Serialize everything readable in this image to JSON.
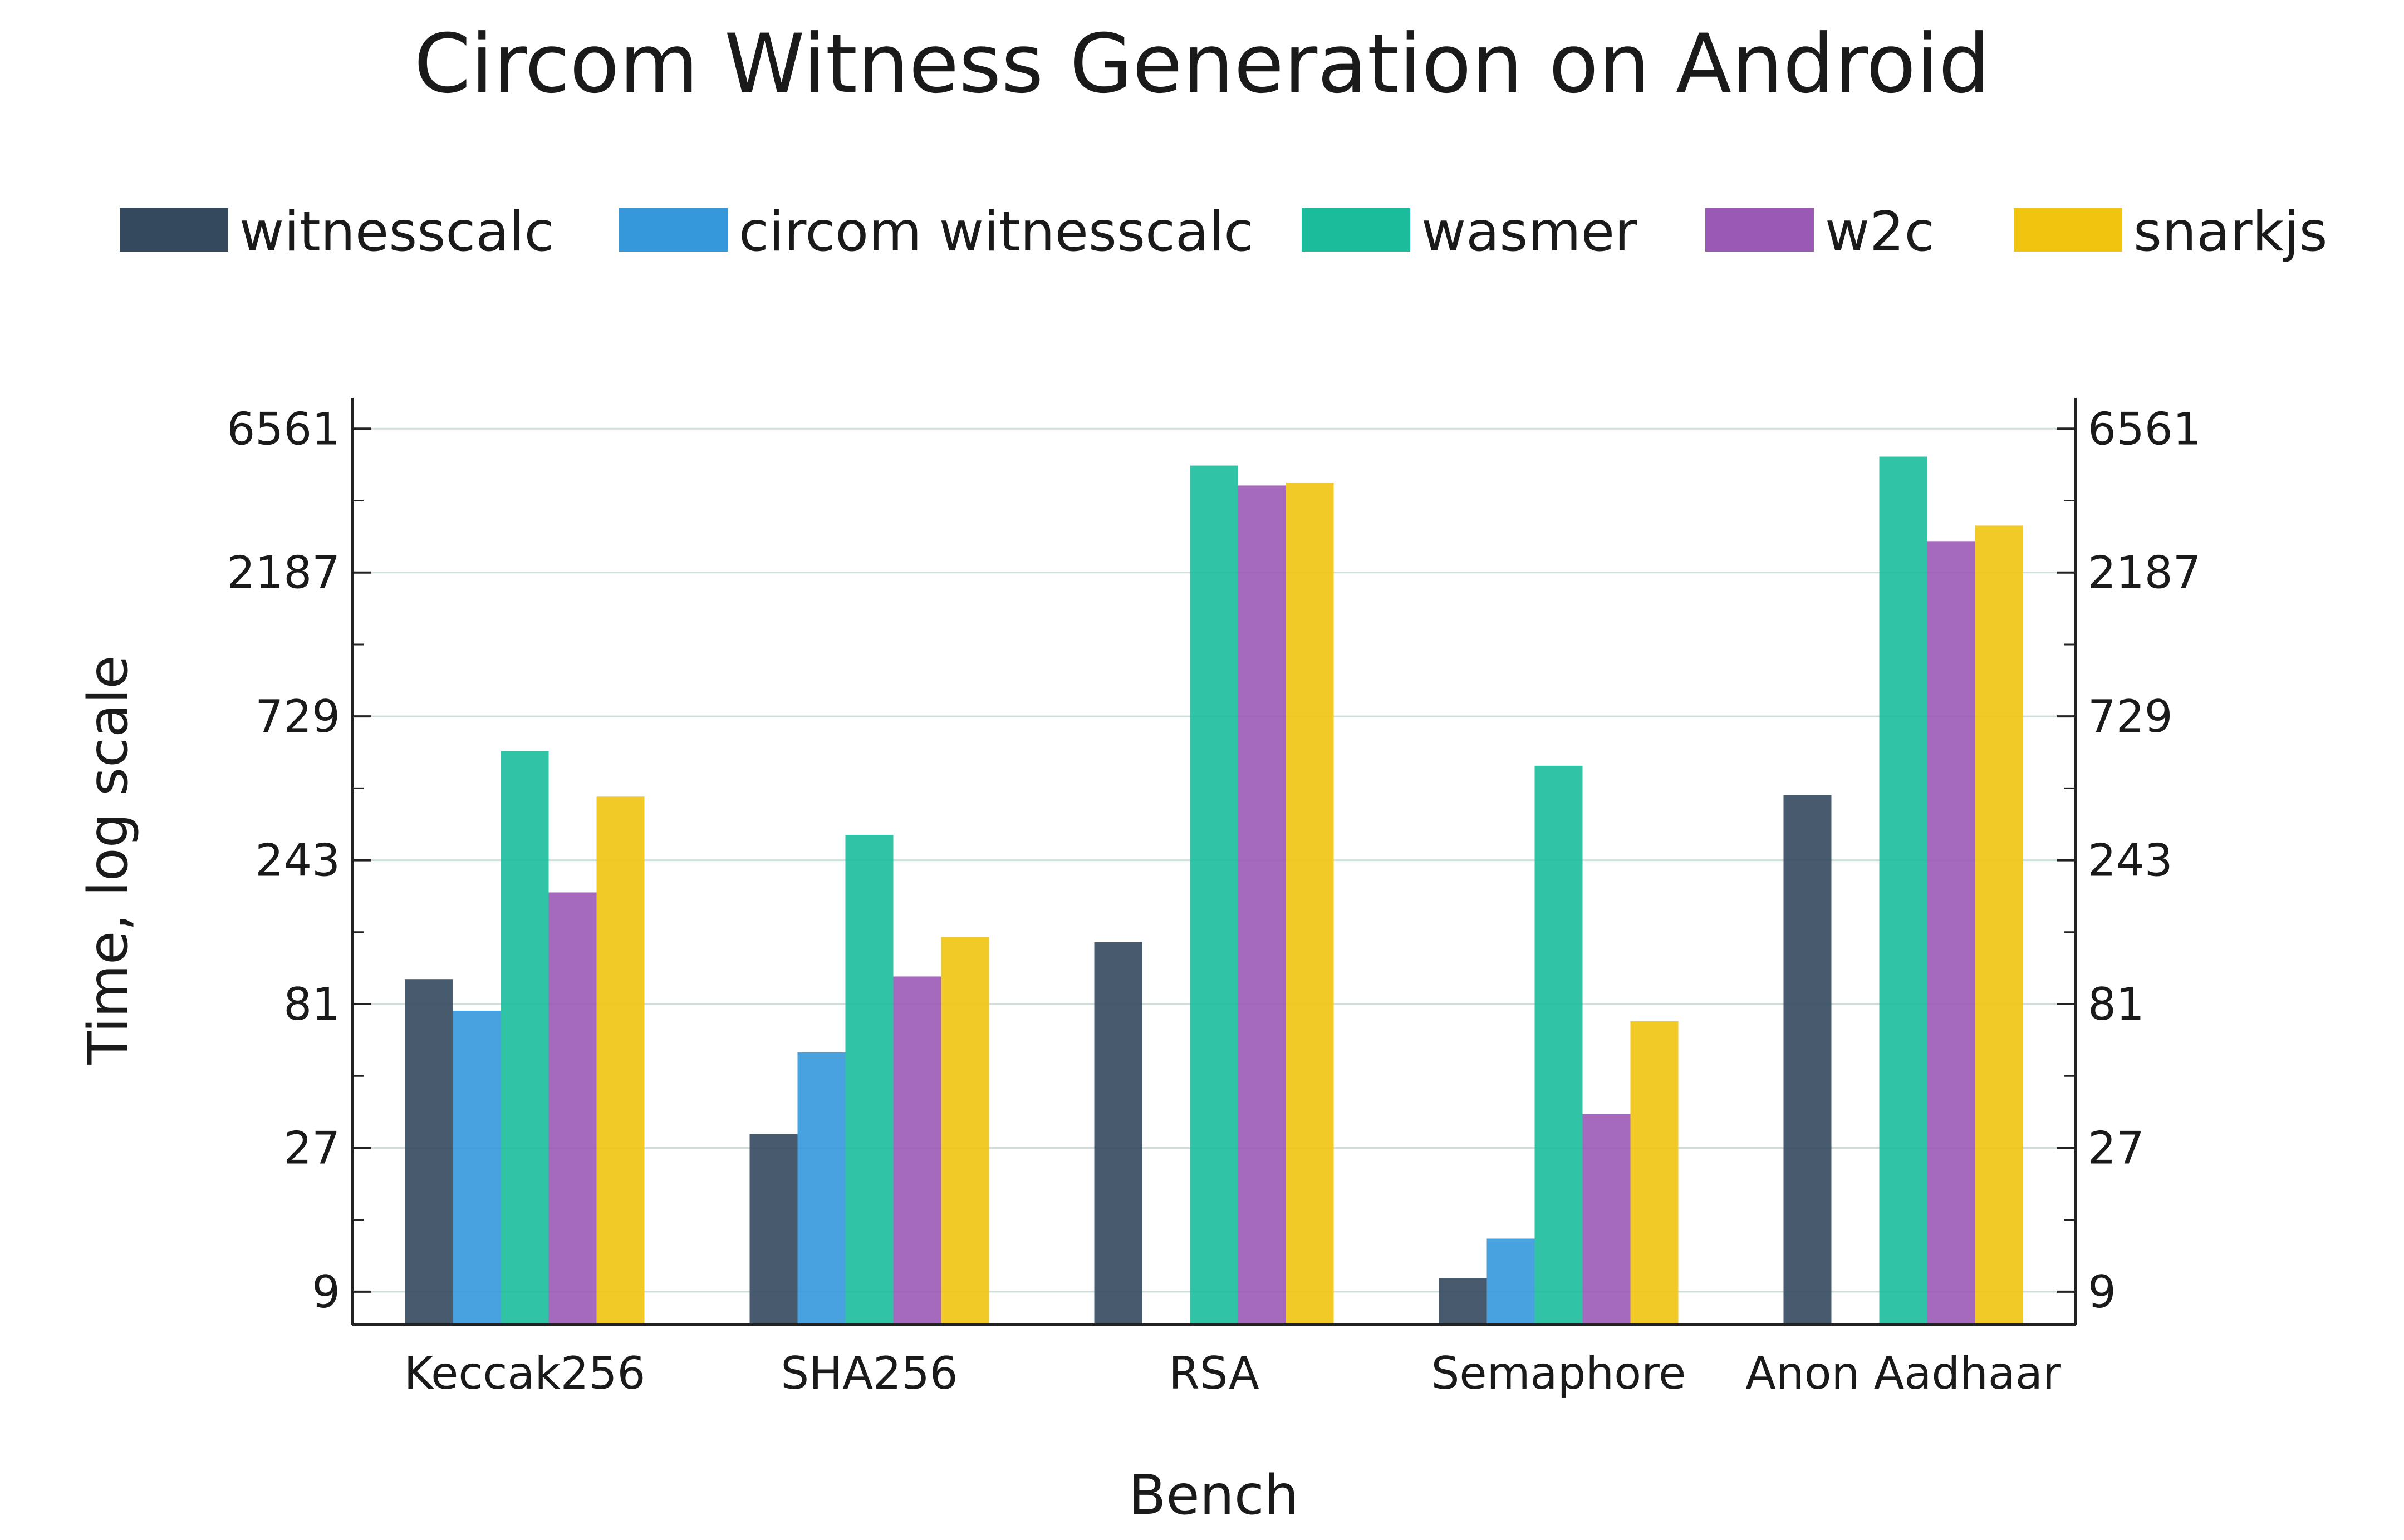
{
  "chart_data": {
    "type": "bar",
    "title": "Circom Witness Generation on Android",
    "xlabel": "Bench",
    "ylabel": "Time, log scale",
    "y_scale": "log3",
    "ylim": [
      7,
      8300
    ],
    "y_ticks": [
      9,
      27,
      81,
      243,
      729,
      2187,
      6561
    ],
    "y_tick_labels": [
      "9",
      "27",
      "81",
      "243",
      "729",
      "2187",
      "6561"
    ],
    "grid": true,
    "legend_position": "top",
    "categories": [
      "Keccak256",
      "SHA256",
      "RSA",
      "Semaphore",
      "Anon Aadhaar"
    ],
    "series": [
      {
        "name": "witnesscalc",
        "color": "#34495e",
        "values": [
          98,
          30,
          130,
          10,
          400
        ]
      },
      {
        "name": "circom witnesscalc",
        "color": "#3498db",
        "values": [
          77,
          56,
          null,
          13.5,
          null
        ]
      },
      {
        "name": "wasmer",
        "color": "#1abc9c",
        "values": [
          560,
          295,
          4950,
          500,
          5300
        ]
      },
      {
        "name": "w2c",
        "color": "#9b59b6",
        "values": [
          190,
          100,
          4250,
          35,
          2780
        ]
      },
      {
        "name": "snarkjs",
        "color": "#f1c40f",
        "values": [
          395,
          135,
          4350,
          71,
          3130
        ]
      }
    ]
  }
}
